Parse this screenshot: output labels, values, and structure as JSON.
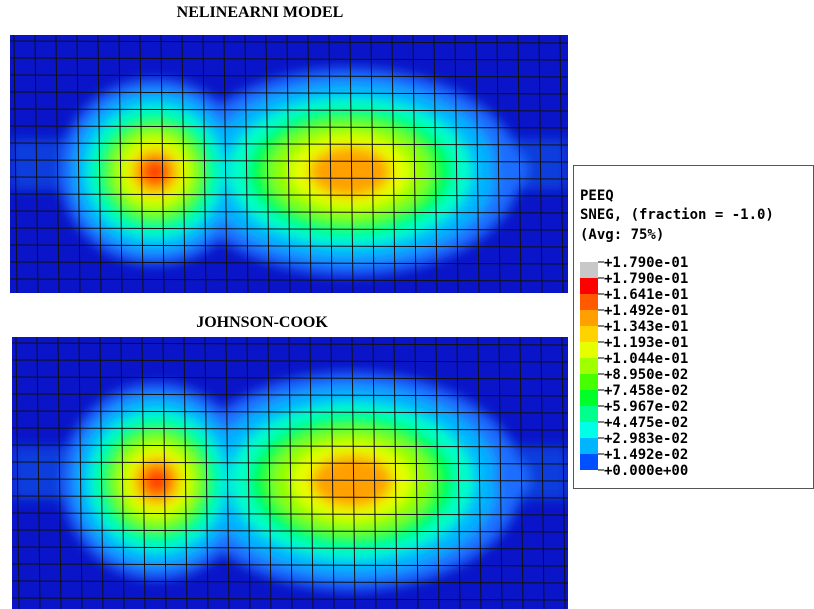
{
  "panels": [
    {
      "title": "NELINEARNI MODEL"
    },
    {
      "title": "JOHNSON-COOK"
    }
  ],
  "legend": {
    "title": "PEEQ",
    "subtitle": "SNEG, (fraction = -1.0)",
    "average": "(Avg: 75%)",
    "labels": [
      "+1.790e-01",
      "+1.790e-01",
      "+1.641e-01",
      "+1.492e-01",
      "+1.343e-01",
      "+1.193e-01",
      "+1.044e-01",
      "+8.950e-02",
      "+7.458e-02",
      "+5.967e-02",
      "+4.475e-02",
      "+2.983e-02",
      "+1.492e-02",
      "+0.000e+00"
    ]
  }
}
